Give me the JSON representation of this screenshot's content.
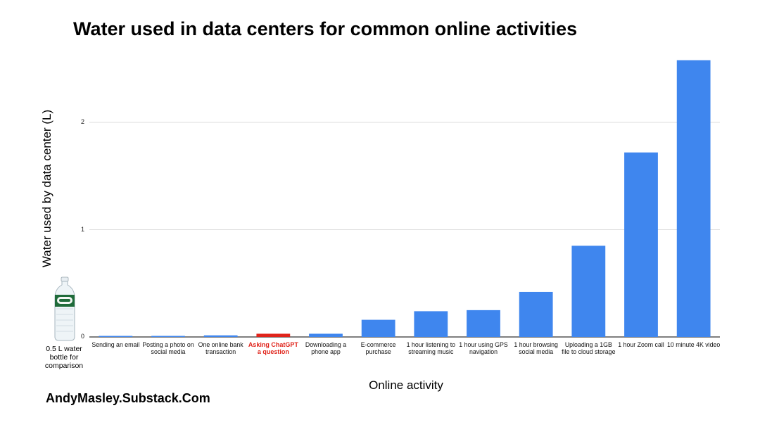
{
  "chart_data": {
    "type": "bar",
    "title": "Water used in data centers for common online activities",
    "xlabel": "Online activity",
    "ylabel": "Water used by data center (L)",
    "ylim": [
      0,
      2.6
    ],
    "yticks": [
      "0",
      "1",
      "2"
    ],
    "ytick_values": [
      0,
      1,
      2
    ],
    "grid": true,
    "categories": [
      "Sending an email",
      "Posting a photo on social media",
      "One online bank transaction",
      "Asking ChatGPT a question",
      "Downloading a phone app",
      "E-commerce purchase",
      "1 hour listening to streaming music",
      "1 hour using GPS navigation",
      "1 hour browsing social media",
      "Uploading a 1GB file to cloud storage",
      "1 hour Zoom call",
      "10 minute 4K video"
    ],
    "values": [
      0.005,
      0.005,
      0.015,
      0.03,
      0.03,
      0.16,
      0.24,
      0.25,
      0.42,
      0.85,
      1.72,
      2.58
    ],
    "highlight_index": 3,
    "colors": {
      "bar": "#3f86ee",
      "highlight": "#e0241b",
      "grid": "#dddddd",
      "axis": "#333333"
    }
  },
  "comparison": {
    "caption": "0.5 L water bottle for comparison",
    "icon": "water-bottle-icon"
  },
  "credit": "AndyMasley.Substack.Com"
}
